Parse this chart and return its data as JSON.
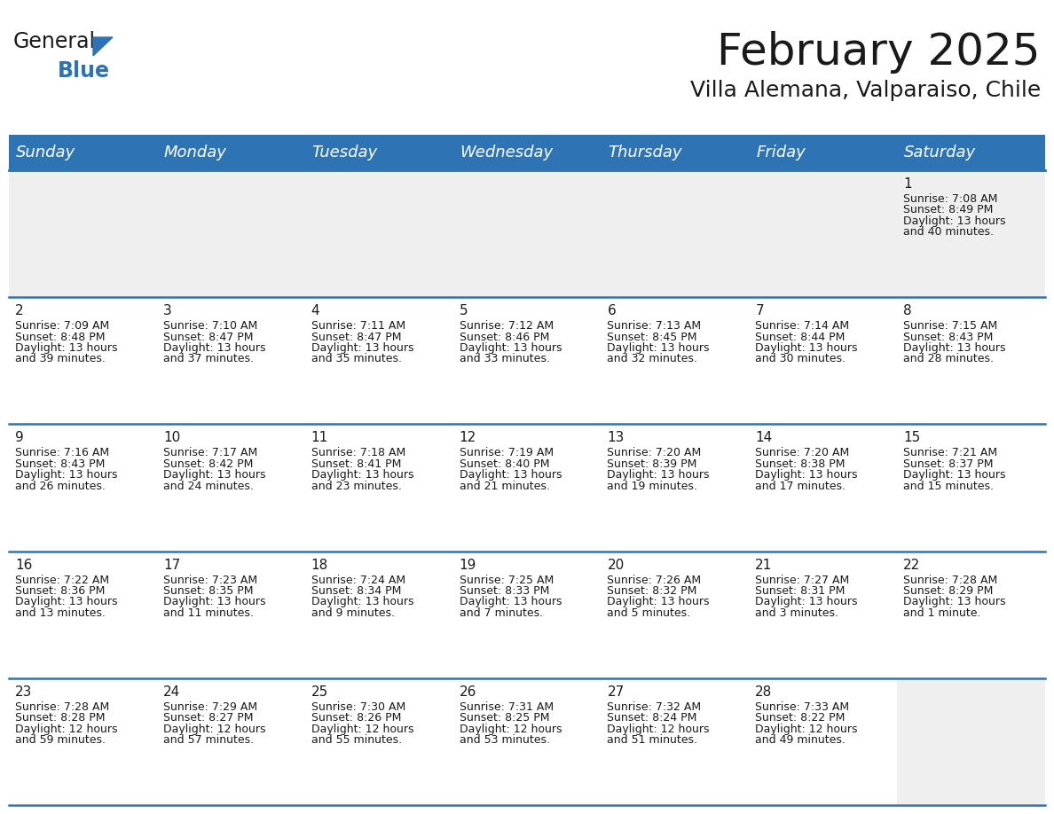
{
  "title": "February 2025",
  "subtitle": "Villa Alemana, Valparaiso, Chile",
  "header_color": "#2E74B5",
  "header_text_color": "#FFFFFF",
  "background_color": "#FFFFFF",
  "cell_bg_white": "#FFFFFF",
  "cell_bg_gray": "#EFEFEF",
  "day_headers": [
    "Sunday",
    "Monday",
    "Tuesday",
    "Wednesday",
    "Thursday",
    "Friday",
    "Saturday"
  ],
  "title_fontsize": 36,
  "subtitle_fontsize": 18,
  "header_fontsize": 13,
  "day_num_fontsize": 11,
  "cell_fontsize": 9,
  "logo_color1": "#1a1a1a",
  "logo_color2": "#2E74B5",
  "logo_triangle_color": "#2E74B5",
  "line_color": "#2E74B5",
  "text_color": "#1a1a1a",
  "calendar_data": [
    [
      null,
      null,
      null,
      null,
      null,
      null,
      {
        "day": 1,
        "sunrise": "7:08 AM",
        "sunset": "8:49 PM",
        "daylight_line1": "Daylight: 13 hours",
        "daylight_line2": "and 40 minutes."
      }
    ],
    [
      {
        "day": 2,
        "sunrise": "7:09 AM",
        "sunset": "8:48 PM",
        "daylight_line1": "Daylight: 13 hours",
        "daylight_line2": "and 39 minutes."
      },
      {
        "day": 3,
        "sunrise": "7:10 AM",
        "sunset": "8:47 PM",
        "daylight_line1": "Daylight: 13 hours",
        "daylight_line2": "and 37 minutes."
      },
      {
        "day": 4,
        "sunrise": "7:11 AM",
        "sunset": "8:47 PM",
        "daylight_line1": "Daylight: 13 hours",
        "daylight_line2": "and 35 minutes."
      },
      {
        "day": 5,
        "sunrise": "7:12 AM",
        "sunset": "8:46 PM",
        "daylight_line1": "Daylight: 13 hours",
        "daylight_line2": "and 33 minutes."
      },
      {
        "day": 6,
        "sunrise": "7:13 AM",
        "sunset": "8:45 PM",
        "daylight_line1": "Daylight: 13 hours",
        "daylight_line2": "and 32 minutes."
      },
      {
        "day": 7,
        "sunrise": "7:14 AM",
        "sunset": "8:44 PM",
        "daylight_line1": "Daylight: 13 hours",
        "daylight_line2": "and 30 minutes."
      },
      {
        "day": 8,
        "sunrise": "7:15 AM",
        "sunset": "8:43 PM",
        "daylight_line1": "Daylight: 13 hours",
        "daylight_line2": "and 28 minutes."
      }
    ],
    [
      {
        "day": 9,
        "sunrise": "7:16 AM",
        "sunset": "8:43 PM",
        "daylight_line1": "Daylight: 13 hours",
        "daylight_line2": "and 26 minutes."
      },
      {
        "day": 10,
        "sunrise": "7:17 AM",
        "sunset": "8:42 PM",
        "daylight_line1": "Daylight: 13 hours",
        "daylight_line2": "and 24 minutes."
      },
      {
        "day": 11,
        "sunrise": "7:18 AM",
        "sunset": "8:41 PM",
        "daylight_line1": "Daylight: 13 hours",
        "daylight_line2": "and 23 minutes."
      },
      {
        "day": 12,
        "sunrise": "7:19 AM",
        "sunset": "8:40 PM",
        "daylight_line1": "Daylight: 13 hours",
        "daylight_line2": "and 21 minutes."
      },
      {
        "day": 13,
        "sunrise": "7:20 AM",
        "sunset": "8:39 PM",
        "daylight_line1": "Daylight: 13 hours",
        "daylight_line2": "and 19 minutes."
      },
      {
        "day": 14,
        "sunrise": "7:20 AM",
        "sunset": "8:38 PM",
        "daylight_line1": "Daylight: 13 hours",
        "daylight_line2": "and 17 minutes."
      },
      {
        "day": 15,
        "sunrise": "7:21 AM",
        "sunset": "8:37 PM",
        "daylight_line1": "Daylight: 13 hours",
        "daylight_line2": "and 15 minutes."
      }
    ],
    [
      {
        "day": 16,
        "sunrise": "7:22 AM",
        "sunset": "8:36 PM",
        "daylight_line1": "Daylight: 13 hours",
        "daylight_line2": "and 13 minutes."
      },
      {
        "day": 17,
        "sunrise": "7:23 AM",
        "sunset": "8:35 PM",
        "daylight_line1": "Daylight: 13 hours",
        "daylight_line2": "and 11 minutes."
      },
      {
        "day": 18,
        "sunrise": "7:24 AM",
        "sunset": "8:34 PM",
        "daylight_line1": "Daylight: 13 hours",
        "daylight_line2": "and 9 minutes."
      },
      {
        "day": 19,
        "sunrise": "7:25 AM",
        "sunset": "8:33 PM",
        "daylight_line1": "Daylight: 13 hours",
        "daylight_line2": "and 7 minutes."
      },
      {
        "day": 20,
        "sunrise": "7:26 AM",
        "sunset": "8:32 PM",
        "daylight_line1": "Daylight: 13 hours",
        "daylight_line2": "and 5 minutes."
      },
      {
        "day": 21,
        "sunrise": "7:27 AM",
        "sunset": "8:31 PM",
        "daylight_line1": "Daylight: 13 hours",
        "daylight_line2": "and 3 minutes."
      },
      {
        "day": 22,
        "sunrise": "7:28 AM",
        "sunset": "8:29 PM",
        "daylight_line1": "Daylight: 13 hours",
        "daylight_line2": "and 1 minute."
      }
    ],
    [
      {
        "day": 23,
        "sunrise": "7:28 AM",
        "sunset": "8:28 PM",
        "daylight_line1": "Daylight: 12 hours",
        "daylight_line2": "and 59 minutes."
      },
      {
        "day": 24,
        "sunrise": "7:29 AM",
        "sunset": "8:27 PM",
        "daylight_line1": "Daylight: 12 hours",
        "daylight_line2": "and 57 minutes."
      },
      {
        "day": 25,
        "sunrise": "7:30 AM",
        "sunset": "8:26 PM",
        "daylight_line1": "Daylight: 12 hours",
        "daylight_line2": "and 55 minutes."
      },
      {
        "day": 26,
        "sunrise": "7:31 AM",
        "sunset": "8:25 PM",
        "daylight_line1": "Daylight: 12 hours",
        "daylight_line2": "and 53 minutes."
      },
      {
        "day": 27,
        "sunrise": "7:32 AM",
        "sunset": "8:24 PM",
        "daylight_line1": "Daylight: 12 hours",
        "daylight_line2": "and 51 minutes."
      },
      {
        "day": 28,
        "sunrise": "7:33 AM",
        "sunset": "8:22 PM",
        "daylight_line1": "Daylight: 12 hours",
        "daylight_line2": "and 49 minutes."
      },
      null
    ]
  ],
  "row_gray": [
    0,
    4
  ],
  "col_gray_last_row": [
    6
  ]
}
